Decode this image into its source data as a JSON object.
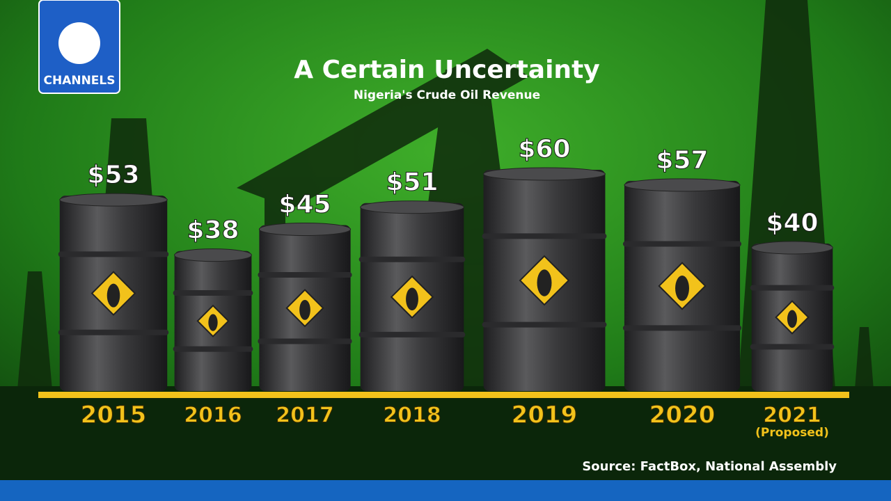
{
  "logo": "CHANNELS",
  "chart_data": {
    "type": "bar",
    "title": "A Certain Uncertainty",
    "subtitle": "Nigeria's Crude Oil Revenue",
    "categories": [
      "2015",
      "2016",
      "2017",
      "2018",
      "2019",
      "2020",
      "2021"
    ],
    "values": [
      53,
      38,
      45,
      51,
      60,
      57,
      40
    ],
    "value_labels": [
      "$53",
      "$38",
      "$45",
      "$51",
      "$60",
      "$57",
      "$40"
    ],
    "annotation": "(Proposed)",
    "source": "Source: FactBox, National Assembly",
    "color": "#3c3c3e"
  }
}
